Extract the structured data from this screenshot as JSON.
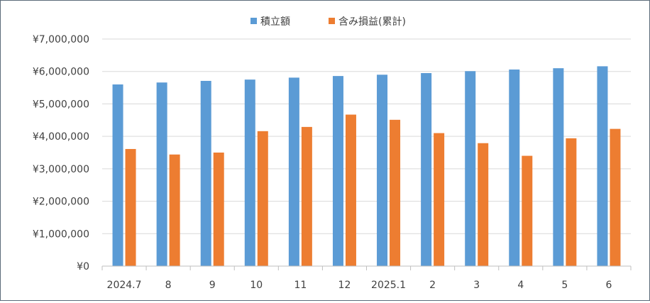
{
  "chart_data": {
    "type": "bar",
    "categories": [
      "2024.7",
      "8",
      "9",
      "10",
      "11",
      "12",
      "2025.1",
      "2",
      "3",
      "4",
      "5",
      "6"
    ],
    "series": [
      {
        "name": "積立額",
        "color": "#5b9bd5",
        "values": [
          5600000,
          5660000,
          5710000,
          5750000,
          5810000,
          5860000,
          5900000,
          5950000,
          6010000,
          6060000,
          6100000,
          6160000
        ]
      },
      {
        "name": "含み損益(累計)",
        "color": "#ed7d31",
        "values": [
          3610000,
          3440000,
          3500000,
          4160000,
          4290000,
          4670000,
          4510000,
          4100000,
          3790000,
          3400000,
          3940000,
          4230000
        ]
      }
    ],
    "yticks": [
      "¥0",
      "¥1,000,000",
      "¥2,000,000",
      "¥3,000,000",
      "¥4,000,000",
      "¥5,000,000",
      "¥6,000,000",
      "¥7,000,000"
    ],
    "ylim": [
      0,
      7000000
    ],
    "grid": true,
    "legend_position": "top-center",
    "title": "",
    "xlabel": "",
    "ylabel": ""
  }
}
